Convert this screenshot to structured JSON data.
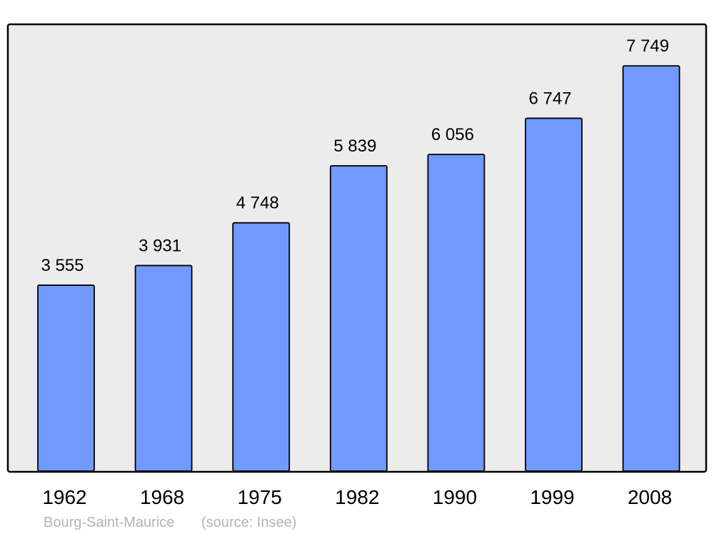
{
  "chart_data": {
    "type": "bar",
    "categories": [
      "1962",
      "1968",
      "1975",
      "1982",
      "1990",
      "1999",
      "2008"
    ],
    "values": [
      3555,
      3931,
      4748,
      5839,
      6056,
      6747,
      7749
    ],
    "value_labels": [
      "3 555",
      "3 931",
      "4 748",
      "5 839",
      "6 056",
      "6 747",
      "7 749"
    ],
    "title": "",
    "xlabel": "",
    "ylabel": "",
    "ylim": [
      0,
      8530
    ],
    "grid": false,
    "bar_color": "#7299ff",
    "plot_background": "#ececec"
  },
  "footer": {
    "place": "Bourg-Saint-Maurice",
    "source": "(source: Insee)"
  }
}
